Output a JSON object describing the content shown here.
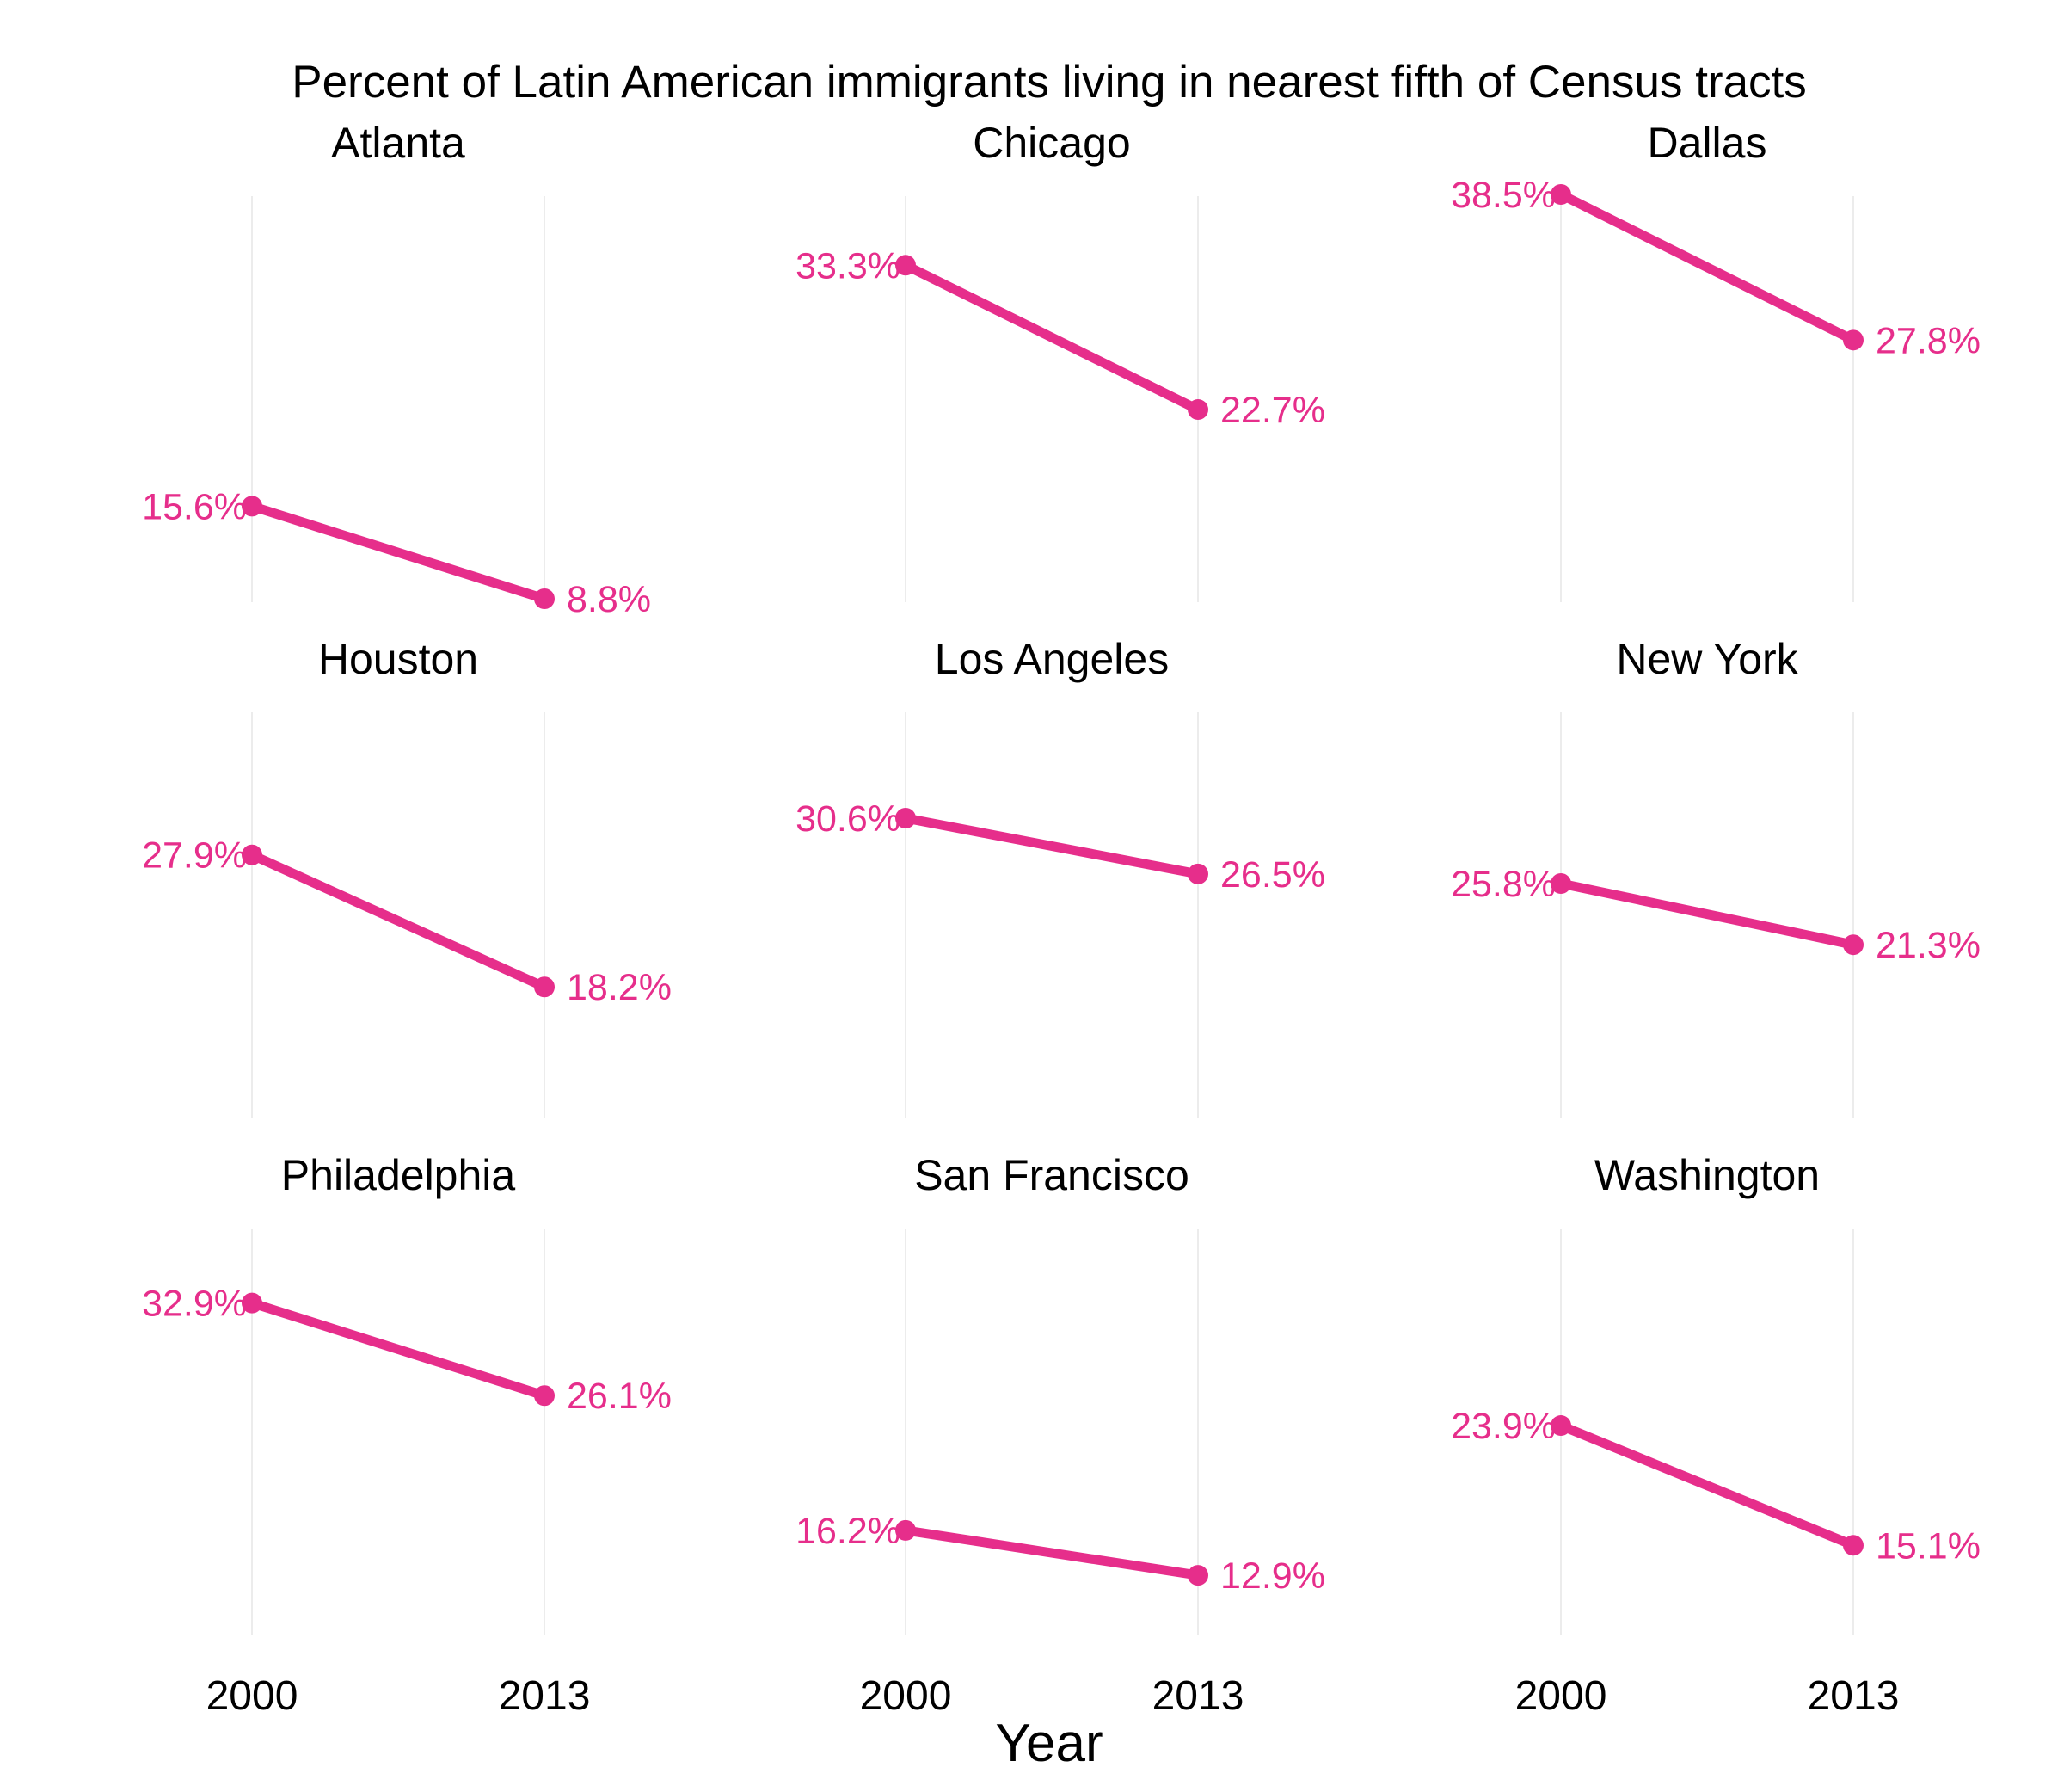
{
  "chart_data": {
    "type": "line",
    "title": "Percent of Latin American immigrants living in nearest fifth of Census tracts",
    "xlabel": "Year",
    "ylabel": "",
    "x": [
      "2000",
      "2013"
    ],
    "ylim": [
      8.8,
      38.5
    ],
    "grid": "vertical lines only",
    "color": "#e62e8b",
    "panels": [
      {
        "name": "Atlanta",
        "values": [
          15.6,
          8.8
        ],
        "labels": [
          "15.6%",
          "8.8%"
        ]
      },
      {
        "name": "Chicago",
        "values": [
          33.3,
          22.7
        ],
        "labels": [
          "33.3%",
          "22.7%"
        ]
      },
      {
        "name": "Dallas",
        "values": [
          38.5,
          27.8
        ],
        "labels": [
          "38.5%",
          "27.8%"
        ]
      },
      {
        "name": "Houston",
        "values": [
          27.9,
          18.2
        ],
        "labels": [
          "27.9%",
          "18.2%"
        ]
      },
      {
        "name": "Los Angeles",
        "values": [
          30.6,
          26.5
        ],
        "labels": [
          "30.6%",
          "26.5%"
        ]
      },
      {
        "name": "New York",
        "values": [
          25.8,
          21.3
        ],
        "labels": [
          "25.8%",
          "21.3%"
        ]
      },
      {
        "name": "Philadelphia",
        "values": [
          32.9,
          26.1
        ],
        "labels": [
          "32.9%",
          "26.1%"
        ]
      },
      {
        "name": "San Francisco",
        "values": [
          16.2,
          12.9
        ],
        "labels": [
          "16.2%",
          "12.9%"
        ]
      },
      {
        "name": "Washington",
        "values": [
          23.9,
          15.1
        ],
        "labels": [
          "23.9%",
          "15.1%"
        ]
      }
    ]
  }
}
